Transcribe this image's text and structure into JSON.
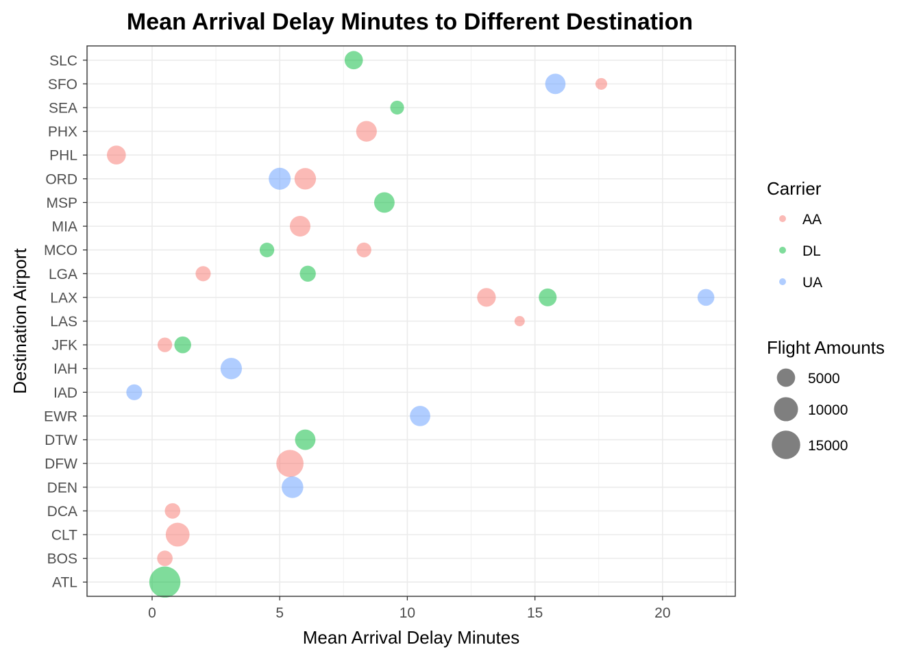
{
  "chart_data": {
    "type": "scatter",
    "title": "Mean Arrival Delay Minutes to Different Destination",
    "xlabel": "Mean Arrival Delay Minutes",
    "ylabel": "Destination Airport",
    "xlim": [
      -2.55,
      22.85
    ],
    "x_ticks": [
      "0",
      "5",
      "10",
      "15",
      "20"
    ],
    "x_tick_values": [
      0,
      5,
      10,
      15,
      20
    ],
    "categories": [
      "ATL",
      "BOS",
      "CLT",
      "DCA",
      "DEN",
      "DFW",
      "DTW",
      "EWR",
      "IAD",
      "IAH",
      "JFK",
      "LAS",
      "LAX",
      "LGA",
      "MCO",
      "MIA",
      "MSP",
      "ORD",
      "PHL",
      "PHX",
      "SEA",
      "SFO",
      "SLC"
    ],
    "grid": true,
    "legend_position": "right",
    "series": [
      {
        "name": "AA",
        "color": "#F8766D",
        "points": [
          {
            "y": "SFO",
            "x": 17.6,
            "n": 1400
          },
          {
            "y": "PHX",
            "x": 8.4,
            "n": 6900
          },
          {
            "y": "PHL",
            "x": -1.4,
            "n": 5500
          },
          {
            "y": "ORD",
            "x": 6.0,
            "n": 7600
          },
          {
            "y": "MIA",
            "x": 5.8,
            "n": 6800
          },
          {
            "y": "MCO",
            "x": 8.3,
            "n": 2800
          },
          {
            "y": "LGA",
            "x": 2.0,
            "n": 3000
          },
          {
            "y": "LAX",
            "x": 13.1,
            "n": 5300
          },
          {
            "y": "LAS",
            "x": 14.4,
            "n": 900
          },
          {
            "y": "JFK",
            "x": 0.5,
            "n": 2700
          },
          {
            "y": "DFW",
            "x": 5.4,
            "n": 13500
          },
          {
            "y": "DCA",
            "x": 0.8,
            "n": 3200
          },
          {
            "y": "CLT",
            "x": 1.0,
            "n": 9800
          },
          {
            "y": "BOS",
            "x": 0.5,
            "n": 3200
          }
        ]
      },
      {
        "name": "DL",
        "color": "#00BA38",
        "points": [
          {
            "y": "SLC",
            "x": 7.9,
            "n": 5000
          },
          {
            "y": "SEA",
            "x": 9.6,
            "n": 2300
          },
          {
            "y": "MSP",
            "x": 9.1,
            "n": 6700
          },
          {
            "y": "MCO",
            "x": 4.5,
            "n": 2700
          },
          {
            "y": "LGA",
            "x": 6.1,
            "n": 3500
          },
          {
            "y": "LAX",
            "x": 15.5,
            "n": 4700
          },
          {
            "y": "JFK",
            "x": 1.2,
            "n": 4000
          },
          {
            "y": "DTW",
            "x": 6.0,
            "n": 6700
          },
          {
            "y": "ATL",
            "x": 0.5,
            "n": 18500
          }
        ]
      },
      {
        "name": "UA",
        "color": "#619CFF",
        "points": [
          {
            "y": "SFO",
            "x": 15.8,
            "n": 6600
          },
          {
            "y": "ORD",
            "x": 5.0,
            "n": 8000
          },
          {
            "y": "LAX",
            "x": 21.7,
            "n": 4000
          },
          {
            "y": "IAH",
            "x": 3.1,
            "n": 7500
          },
          {
            "y": "IAD",
            "x": -0.7,
            "n": 3400
          },
          {
            "y": "EWR",
            "x": 10.5,
            "n": 6600
          },
          {
            "y": "DEN",
            "x": 5.5,
            "n": 7700
          }
        ]
      }
    ],
    "legend": {
      "carrier_title": "Carrier",
      "carriers": [
        {
          "label": "AA",
          "color": "#F8766D"
        },
        {
          "label": "DL",
          "color": "#00BA38"
        },
        {
          "label": "UA",
          "color": "#619CFF"
        }
      ],
      "size_title": "Flight Amounts",
      "sizes": [
        {
          "label": "5000",
          "n": 5000
        },
        {
          "label": "10000",
          "n": 10000
        },
        {
          "label": "15000",
          "n": 15000
        }
      ]
    },
    "point_alpha": 0.5
  }
}
